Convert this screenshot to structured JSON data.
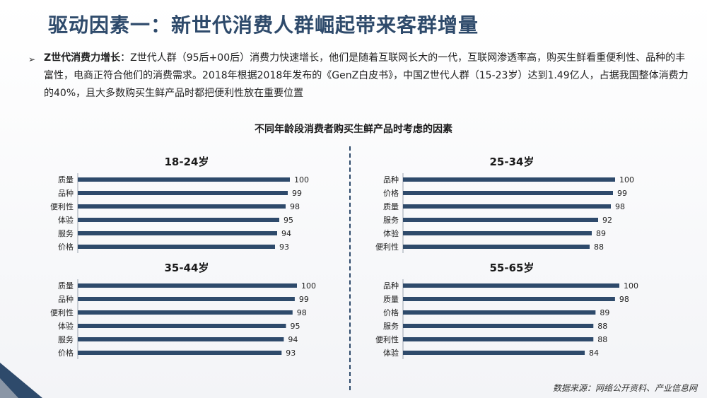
{
  "title": "驱动因素一：新世代消费人群崛起带来客群增量",
  "paragraph": {
    "lead": "Z世代消费力增长",
    "text": "：Z世代人群（95后+00后）消费力快速增长，他们是随着互联网长大的一代，互联网渗透率高，购买生鲜看重便利性、品种的丰富性，电商正符合他们的消费需求。2018年根据2018年发布的《GenZ白皮书》，中国Z世代人群（15-23岁）达到1.49亿人，占据我国整体消费力的40%，且大多数购买生鲜产品时都把便利性放在重要位置"
  },
  "chart_title": "不同年龄段消费者购买生鲜产品时考虑的因素",
  "source": "数据来源：网络公开资料、产业信息网",
  "colors": {
    "bar": "#2e4a6b",
    "title": "#2e4a6b"
  },
  "chart_data": [
    {
      "type": "bar",
      "orientation": "horizontal",
      "title": "18-24岁",
      "categories": [
        "质量",
        "品种",
        "便利性",
        "体验",
        "服务",
        "价格"
      ],
      "values": [
        100,
        99,
        98,
        95,
        94,
        93
      ]
    },
    {
      "type": "bar",
      "orientation": "horizontal",
      "title": "25-34岁",
      "categories": [
        "品种",
        "价格",
        "质量",
        "服务",
        "体验",
        "便利性"
      ],
      "values": [
        100,
        99,
        98,
        92,
        89,
        88
      ]
    },
    {
      "type": "bar",
      "orientation": "horizontal",
      "title": "35-44岁",
      "categories": [
        "质量",
        "品种",
        "便利性",
        "体验",
        "服务",
        "价格"
      ],
      "values": [
        100,
        99,
        98,
        95,
        94,
        93
      ]
    },
    {
      "type": "bar",
      "orientation": "horizontal",
      "title": "55-65岁",
      "categories": [
        "品种",
        "质量",
        "价格",
        "服务",
        "便利性",
        "体验"
      ],
      "values": [
        100,
        98,
        89,
        88,
        88,
        84
      ]
    }
  ]
}
